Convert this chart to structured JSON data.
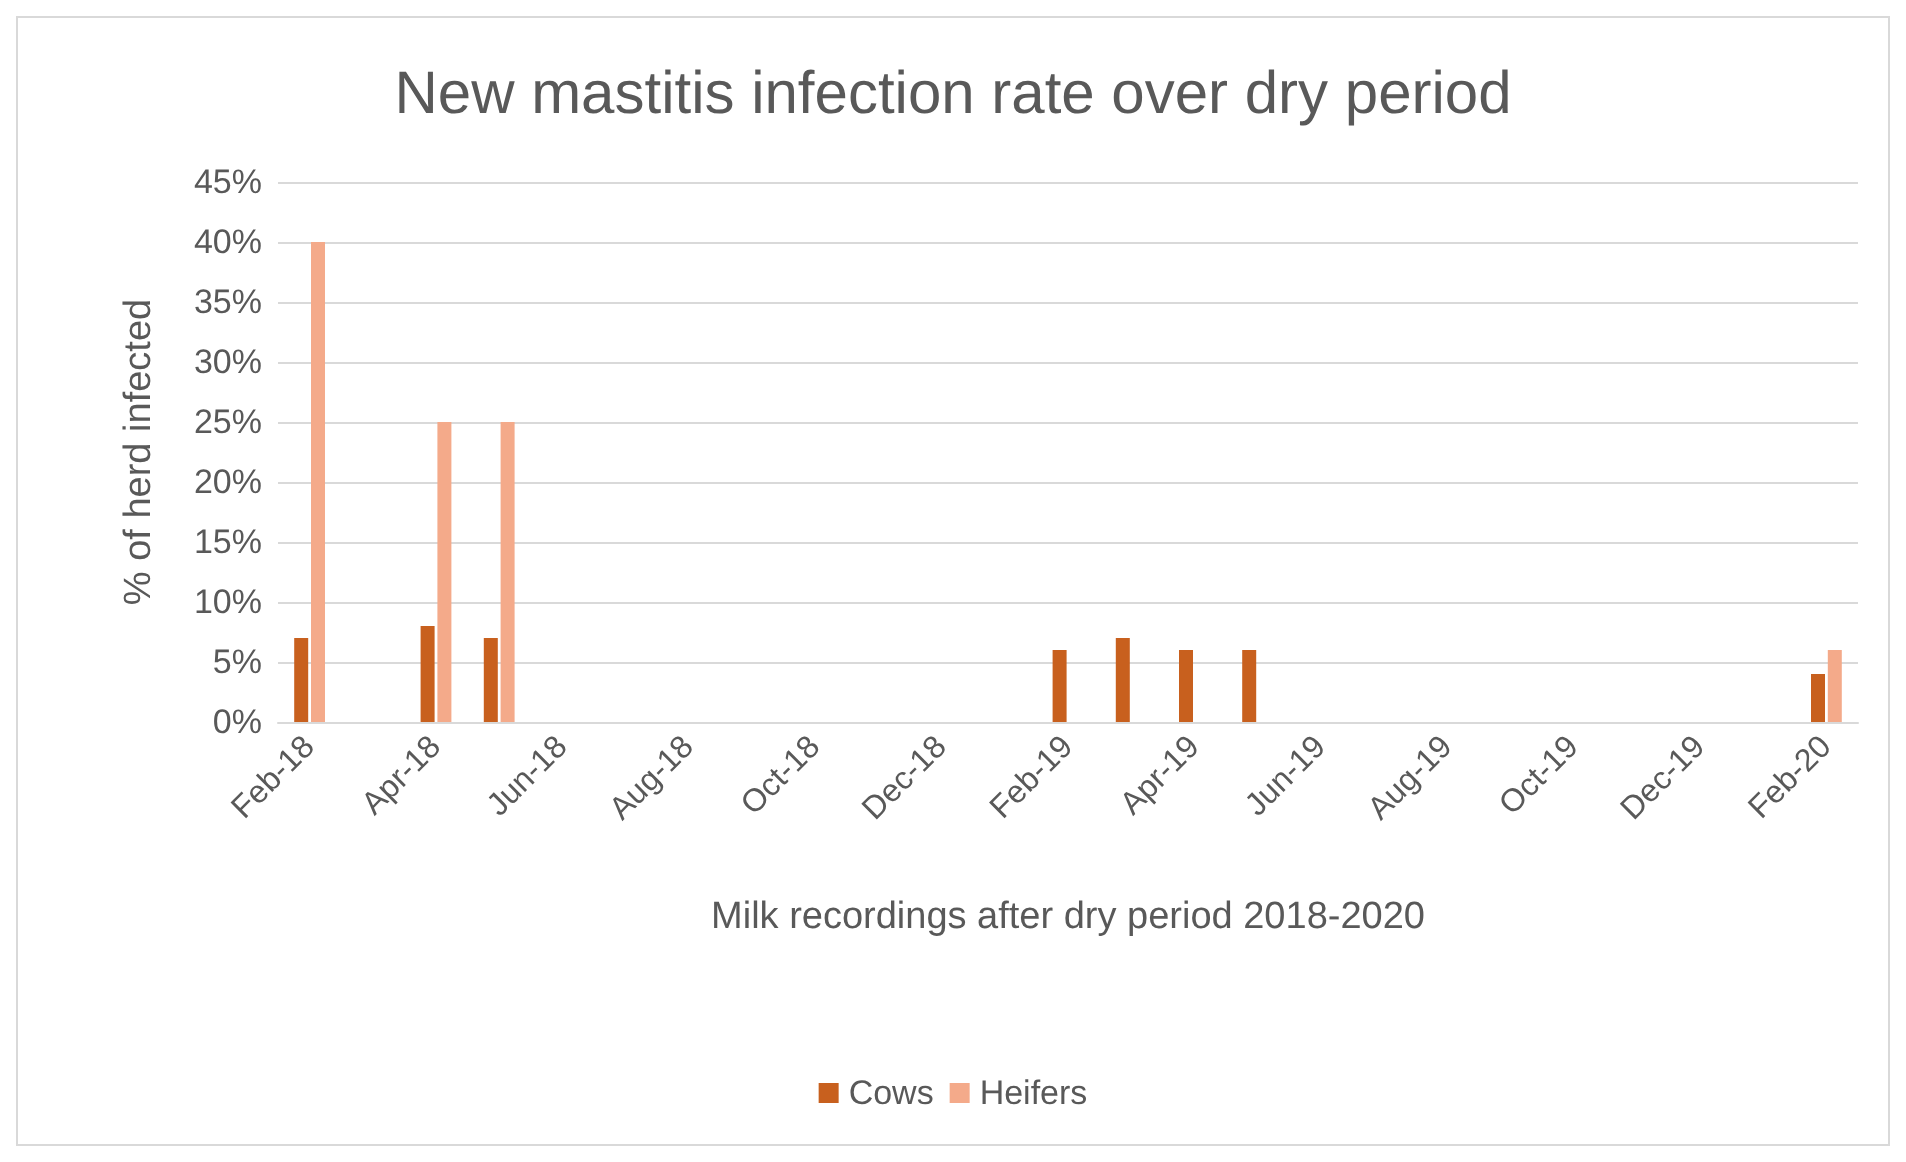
{
  "chart_data": {
    "type": "bar",
    "title": "New mastitis infection rate over dry period",
    "xlabel": "Milk recordings after dry period 2018-2020",
    "ylabel": "% of herd infected",
    "categories": [
      "Feb-18",
      null,
      "Apr-18",
      null,
      "Jun-18",
      null,
      "Aug-18",
      null,
      "Oct-18",
      null,
      "Dec-18",
      null,
      "Feb-19",
      null,
      "Apr-19",
      null,
      "Jun-19",
      null,
      "Aug-19",
      null,
      "Oct-19",
      null,
      "Dec-19",
      null,
      "Feb-20"
    ],
    "series": [
      {
        "name": "Cows",
        "color": "#c8601e",
        "values": [
          7,
          null,
          8,
          7,
          null,
          null,
          null,
          null,
          null,
          null,
          null,
          null,
          6,
          7,
          6,
          6,
          null,
          null,
          null,
          null,
          null,
          null,
          null,
          null,
          4
        ]
      },
      {
        "name": "Heifers",
        "color": "#f4aa8a",
        "values": [
          40,
          null,
          25,
          25,
          null,
          null,
          null,
          null,
          null,
          null,
          null,
          null,
          null,
          null,
          null,
          null,
          null,
          null,
          null,
          null,
          null,
          null,
          null,
          null,
          6
        ]
      }
    ],
    "ylim": [
      0,
      45
    ],
    "yticks": [
      {
        "value": 0,
        "label": "0%"
      },
      {
        "value": 5,
        "label": "5%"
      },
      {
        "value": 10,
        "label": "10%"
      },
      {
        "value": 15,
        "label": "15%"
      },
      {
        "value": 20,
        "label": "20%"
      },
      {
        "value": 25,
        "label": "25%"
      },
      {
        "value": 30,
        "label": "30%"
      },
      {
        "value": 35,
        "label": "35%"
      },
      {
        "value": 40,
        "label": "40%"
      },
      {
        "value": 45,
        "label": "45%"
      }
    ],
    "grid": "y",
    "legend": "bottom"
  }
}
